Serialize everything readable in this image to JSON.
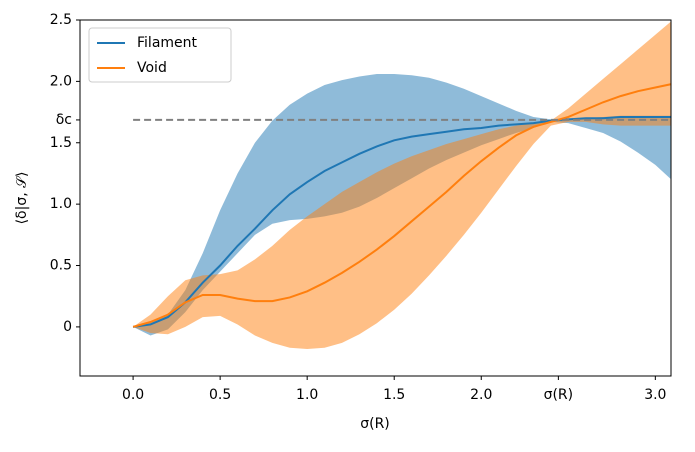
{
  "chart_data": {
    "type": "line",
    "xlabel": "σ(R)",
    "ylabel": "⟨δ|σ, 𝒮⟩",
    "xlim": [
      -0.305,
      3.09
    ],
    "ylim": [
      -0.4,
      2.5
    ],
    "xticks": [
      {
        "value": 0,
        "label": "0.0"
      },
      0.5,
      {
        "value": 1,
        "label": "1.0"
      },
      1.5,
      {
        "value": 2,
        "label": "2.0"
      },
      {
        "value": 2.443,
        "label": "σ(R)"
      },
      {
        "value": 3,
        "label": "3.0"
      }
    ],
    "yticks": [
      0,
      0.5,
      {
        "value": 1,
        "label": "1.0"
      },
      1.5,
      {
        "value": 1.686,
        "label": "δc"
      },
      {
        "value": 2,
        "label": "2.0"
      },
      2.5
    ],
    "legend": "upper left",
    "hline": {
      "y": 1.686,
      "x_start": 0,
      "color": "#808080"
    },
    "x": [
      0,
      0.1,
      0.2,
      0.3,
      0.4,
      0.5,
      0.6,
      0.7,
      0.8,
      0.9,
      1.0,
      1.1,
      1.2,
      1.3,
      1.4,
      1.5,
      1.6,
      1.7,
      1.8,
      1.9,
      2.0,
      2.1,
      2.2,
      2.3,
      2.4,
      2.5,
      2.6,
      2.7,
      2.8,
      2.9,
      3.0,
      3.1
    ],
    "series": [
      {
        "name": "Filament",
        "color": "#1f77b4",
        "values": [
          0,
          0.02,
          0.08,
          0.2,
          0.36,
          0.5,
          0.66,
          0.8,
          0.95,
          1.08,
          1.18,
          1.27,
          1.34,
          1.41,
          1.47,
          1.52,
          1.55,
          1.57,
          1.59,
          1.61,
          1.62,
          1.64,
          1.65,
          1.66,
          1.68,
          1.69,
          1.7,
          1.7,
          1.71,
          1.71,
          1.71,
          1.71
        ],
        "upper": [
          0,
          0.04,
          0.1,
          0.3,
          0.6,
          0.95,
          1.25,
          1.5,
          1.68,
          1.81,
          1.9,
          1.97,
          2.01,
          2.04,
          2.06,
          2.06,
          2.05,
          2.03,
          1.99,
          1.94,
          1.88,
          1.82,
          1.76,
          1.71,
          1.69,
          1.69,
          1.7,
          1.71,
          1.72,
          1.72,
          1.72,
          1.72
        ],
        "lower": [
          0,
          -0.07,
          -0.02,
          0.12,
          0.3,
          0.45,
          0.6,
          0.75,
          0.84,
          0.87,
          0.88,
          0.9,
          0.93,
          0.98,
          1.05,
          1.13,
          1.21,
          1.29,
          1.36,
          1.42,
          1.48,
          1.53,
          1.58,
          1.62,
          1.67,
          1.66,
          1.62,
          1.58,
          1.51,
          1.42,
          1.32,
          1.19
        ]
      },
      {
        "name": "Void",
        "color": "#ff7f0e",
        "values": [
          0,
          0.04,
          0.1,
          0.2,
          0.26,
          0.26,
          0.23,
          0.21,
          0.21,
          0.24,
          0.29,
          0.36,
          0.44,
          0.53,
          0.63,
          0.74,
          0.86,
          0.98,
          1.1,
          1.23,
          1.35,
          1.46,
          1.56,
          1.63,
          1.67,
          1.71,
          1.77,
          1.83,
          1.88,
          1.92,
          1.95,
          1.98
        ],
        "upper": [
          0,
          0.1,
          0.25,
          0.38,
          0.42,
          0.43,
          0.46,
          0.55,
          0.66,
          0.79,
          0.9,
          1.0,
          1.1,
          1.18,
          1.26,
          1.33,
          1.39,
          1.44,
          1.49,
          1.53,
          1.57,
          1.61,
          1.64,
          1.66,
          1.68,
          1.78,
          1.9,
          2.02,
          2.14,
          2.26,
          2.38,
          2.5
        ],
        "lower": [
          0,
          -0.05,
          -0.06,
          0.0,
          0.08,
          0.09,
          0.02,
          -0.07,
          -0.13,
          -0.17,
          -0.18,
          -0.17,
          -0.13,
          -0.06,
          0.03,
          0.14,
          0.27,
          0.42,
          0.58,
          0.75,
          0.93,
          1.12,
          1.31,
          1.49,
          1.64,
          1.67,
          1.67,
          1.65,
          1.64,
          1.64,
          1.64,
          1.64
        ]
      }
    ]
  }
}
